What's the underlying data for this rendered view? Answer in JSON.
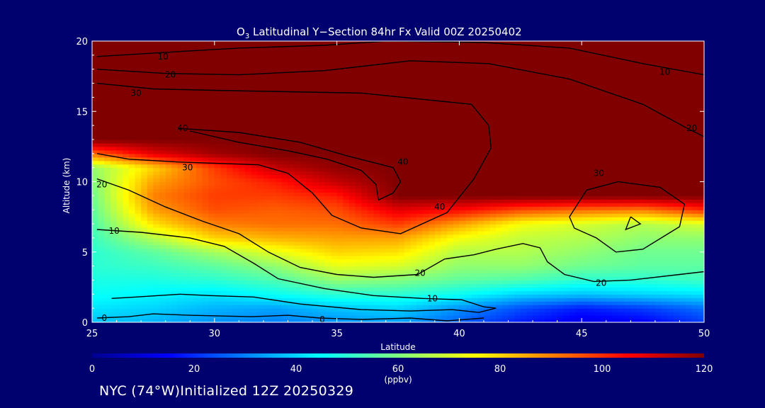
{
  "title_main": "O",
  "title_sub": "3",
  "title_rest": " Latitudinal Y−Section 84hr  Fx Valid 00Z 20250402",
  "footer": "NYC (74°W)Initialized 12Z 20250329",
  "colors": {
    "background": "#00006e",
    "colormap": [
      "#00008f",
      "#0000ff",
      "#0080ff",
      "#00ffff",
      "#80ff80",
      "#ffff00",
      "#ff8000",
      "#ff0000",
      "#800000"
    ]
  },
  "chart_data": {
    "type": "heatmap",
    "title": "O3 Latitudinal Y−Section 84hr  Fx Valid 00Z 20250402",
    "xlabel": "Latitude",
    "ylabel": "Altitude (km)",
    "xlim": [
      25,
      50
    ],
    "ylim": [
      0,
      20
    ],
    "x_ticks": [
      25,
      30,
      35,
      40,
      45,
      50
    ],
    "y_ticks": [
      0,
      5,
      10,
      15,
      20
    ],
    "colorbar": {
      "label": "(ppbv)",
      "range": [
        0,
        120
      ],
      "ticks": [
        0,
        20,
        40,
        60,
        80,
        100,
        120
      ]
    },
    "contour_levels": [
      0,
      10,
      20,
      30,
      40
    ],
    "contour_labels": [
      {
        "text": "10",
        "lat": 27.9,
        "alt": 18.9
      },
      {
        "text": "20",
        "lat": 28.2,
        "alt": 17.6
      },
      {
        "text": "30",
        "lat": 26.8,
        "alt": 16.3
      },
      {
        "text": "40",
        "lat": 28.7,
        "alt": 13.8
      },
      {
        "text": "10",
        "lat": 48.4,
        "alt": 17.8
      },
      {
        "text": "20",
        "lat": 49.5,
        "alt": 13.8
      },
      {
        "text": "30",
        "lat": 28.9,
        "alt": 11.0
      },
      {
        "text": "20",
        "lat": 25.4,
        "alt": 9.8
      },
      {
        "text": "10",
        "lat": 25.9,
        "alt": 6.5
      },
      {
        "text": "0",
        "lat": 25.5,
        "alt": 0.3
      },
      {
        "text": "0",
        "lat": 34.4,
        "alt": 0.2
      },
      {
        "text": "10",
        "lat": 38.9,
        "alt": 1.7
      },
      {
        "text": "20",
        "lat": 38.4,
        "alt": 3.5
      },
      {
        "text": "20",
        "lat": 45.8,
        "alt": 2.8
      },
      {
        "text": "30",
        "lat": 45.7,
        "alt": 10.6
      },
      {
        "text": "40",
        "lat": 39.2,
        "alt": 8.2
      },
      {
        "text": "40",
        "lat": 37.7,
        "alt": 11.4
      }
    ],
    "ozone_field_ppbv": {
      "lat": [
        25,
        27.5,
        30,
        32.5,
        35,
        37.5,
        40,
        42.5,
        45,
        47.5,
        50
      ],
      "alt": [
        0,
        1,
        2,
        3,
        4,
        5,
        6,
        7,
        8,
        9,
        10,
        11,
        12,
        13,
        14,
        15,
        16,
        17,
        18,
        19,
        20
      ],
      "values": [
        [
          38,
          36,
          32,
          30,
          32,
          34,
          26,
          18,
          12,
          14,
          22
        ],
        [
          42,
          40,
          36,
          34,
          38,
          40,
          32,
          24,
          18,
          22,
          28
        ],
        [
          46,
          44,
          42,
          46,
          50,
          50,
          46,
          40,
          38,
          40,
          42
        ],
        [
          48,
          48,
          50,
          54,
          62,
          60,
          56,
          54,
          50,
          50,
          52
        ],
        [
          50,
          52,
          56,
          62,
          72,
          70,
          62,
          62,
          58,
          56,
          56
        ],
        [
          50,
          56,
          64,
          72,
          80,
          78,
          66,
          66,
          62,
          58,
          58
        ],
        [
          52,
          66,
          80,
          84,
          86,
          86,
          74,
          68,
          66,
          62,
          62
        ],
        [
          54,
          78,
          90,
          92,
          92,
          98,
          86,
          74,
          70,
          66,
          70
        ],
        [
          56,
          86,
          96,
          94,
          96,
          108,
          104,
          96,
          92,
          90,
          100
        ],
        [
          58,
          90,
          98,
          98,
          102,
          120,
          120,
          120,
          120,
          120,
          120
        ],
        [
          60,
          86,
          96,
          102,
          112,
          120,
          120,
          120,
          120,
          120,
          120
        ],
        [
          62,
          80,
          98,
          112,
          118,
          120,
          120,
          120,
          120,
          120,
          120
        ],
        [
          92,
          108,
          116,
          120,
          120,
          120,
          120,
          120,
          120,
          120,
          120
        ],
        [
          120,
          120,
          120,
          120,
          120,
          120,
          120,
          120,
          120,
          120,
          120
        ],
        [
          120,
          120,
          120,
          120,
          120,
          120,
          120,
          120,
          120,
          120,
          120
        ],
        [
          120,
          120,
          120,
          120,
          120,
          120,
          120,
          120,
          120,
          120,
          120
        ],
        [
          120,
          120,
          120,
          120,
          120,
          120,
          120,
          120,
          120,
          120,
          120
        ],
        [
          120,
          120,
          120,
          120,
          120,
          120,
          120,
          120,
          120,
          120,
          120
        ],
        [
          120,
          120,
          120,
          120,
          120,
          120,
          120,
          120,
          120,
          120,
          120
        ],
        [
          120,
          120,
          120,
          120,
          120,
          120,
          120,
          120,
          120,
          120,
          120
        ],
        [
          120,
          120,
          120,
          120,
          120,
          120,
          120,
          120,
          120,
          120,
          120
        ]
      ]
    },
    "contour_lines": [
      {
        "level": 40,
        "points": [
          [
            28.5,
            13.8
          ],
          [
            31,
            13.5
          ],
          [
            33.5,
            12.8
          ],
          [
            35.5,
            11.8
          ],
          [
            37.3,
            11.0
          ],
          [
            37.6,
            10.0
          ],
          [
            37.3,
            9.2
          ],
          [
            36.7,
            8.7
          ],
          [
            36.6,
            9.8
          ],
          [
            36,
            10.8
          ],
          [
            34.6,
            11.6
          ],
          [
            33,
            12.2
          ],
          [
            31,
            12.8
          ],
          [
            29,
            13.6
          ]
        ]
      },
      {
        "level": 40,
        "points": [
          [
            47.0,
            7.5
          ],
          [
            47.4,
            7.0
          ],
          [
            46.8,
            6.6
          ],
          [
            47.0,
            7.5
          ]
        ]
      },
      {
        "level": 30,
        "points": [
          [
            25.2,
            17.0
          ],
          [
            27.5,
            16.6
          ],
          [
            30,
            16.5
          ],
          [
            33,
            16.4
          ],
          [
            36,
            16.3
          ],
          [
            40.5,
            15.5
          ],
          [
            41.2,
            14.0
          ],
          [
            41.3,
            12.4
          ],
          [
            40.6,
            10.2
          ],
          [
            39.5,
            7.8
          ],
          [
            37.6,
            6.3
          ],
          [
            36.0,
            6.7
          ],
          [
            34.8,
            7.6
          ],
          [
            34.0,
            9.2
          ],
          [
            33.0,
            10.6
          ],
          [
            31.8,
            11.2
          ],
          [
            30.2,
            11.3
          ],
          [
            28.5,
            11.4
          ],
          [
            26.5,
            11.6
          ],
          [
            25.2,
            12.0
          ]
        ]
      },
      {
        "level": 30,
        "points": [
          [
            44.5,
            7.5
          ],
          [
            45.2,
            9.4
          ],
          [
            46.5,
            10.0
          ],
          [
            48.2,
            9.6
          ],
          [
            49.2,
            8.4
          ],
          [
            49.0,
            6.8
          ],
          [
            47.5,
            5.2
          ],
          [
            46.4,
            5.0
          ],
          [
            45.6,
            6.0
          ],
          [
            44.7,
            6.7
          ],
          [
            44.5,
            7.5
          ]
        ]
      },
      {
        "level": 20,
        "points": [
          [
            25.2,
            18.0
          ],
          [
            28,
            17.7
          ],
          [
            31,
            17.6
          ],
          [
            34.5,
            17.9
          ],
          [
            38,
            18.6
          ],
          [
            41.2,
            18.4
          ],
          [
            44.5,
            17.3
          ],
          [
            47.5,
            15.5
          ],
          [
            49.2,
            13.9
          ],
          [
            50,
            13.2
          ]
        ]
      },
      {
        "level": 20,
        "points": [
          [
            25.2,
            10.2
          ],
          [
            26.5,
            9.4
          ],
          [
            28,
            8.2
          ],
          [
            29.5,
            7.2
          ],
          [
            31,
            6.3
          ],
          [
            32.2,
            5.0
          ],
          [
            33.5,
            3.9
          ],
          [
            35,
            3.4
          ],
          [
            36.5,
            3.2
          ],
          [
            38.3,
            3.4
          ],
          [
            39.4,
            4.5
          ],
          [
            40.6,
            4.8
          ],
          [
            41.5,
            5.2
          ],
          [
            42.6,
            5.6
          ],
          [
            43.3,
            5.3
          ],
          [
            43.6,
            4.3
          ],
          [
            44.3,
            3.4
          ],
          [
            45.5,
            2.9
          ],
          [
            47,
            3.0
          ],
          [
            49,
            3.4
          ],
          [
            50,
            3.6
          ]
        ]
      },
      {
        "level": 10,
        "points": [
          [
            25.2,
            18.9
          ],
          [
            28,
            19.2
          ],
          [
            31,
            19.5
          ],
          [
            34.5,
            19.7
          ],
          [
            37,
            20.0
          ],
          [
            41,
            19.9
          ],
          [
            44.5,
            19.5
          ],
          [
            47.5,
            18.4
          ],
          [
            50,
            17.6
          ]
        ]
      },
      {
        "level": 10,
        "points": [
          [
            25.2,
            6.6
          ],
          [
            27,
            6.4
          ],
          [
            29,
            6.0
          ],
          [
            30.4,
            5.4
          ],
          [
            31.6,
            4.2
          ],
          [
            32.6,
            3.1
          ],
          [
            34.5,
            2.4
          ],
          [
            36.5,
            1.9
          ],
          [
            38.5,
            1.7
          ],
          [
            40.1,
            1.6
          ],
          [
            41,
            1.1
          ],
          [
            41.5,
            1.0
          ],
          [
            40.8,
            0.7
          ],
          [
            39.7,
            0.9
          ],
          [
            38,
            0.8
          ],
          [
            36,
            0.9
          ],
          [
            33.5,
            1.3
          ],
          [
            31.6,
            1.8
          ],
          [
            29.8,
            1.9
          ],
          [
            28.6,
            2.0
          ],
          [
            26.8,
            1.8
          ],
          [
            25.8,
            1.7
          ]
        ]
      },
      {
        "level": 0,
        "points": [
          [
            25.2,
            0.3
          ],
          [
            26.5,
            0.4
          ],
          [
            27.5,
            0.6
          ],
          [
            29,
            0.5
          ],
          [
            31.5,
            0.4
          ],
          [
            33,
            0.5
          ],
          [
            34.3,
            0.3
          ],
          [
            36,
            0.2
          ],
          [
            38,
            0.3
          ],
          [
            39.5,
            0.1
          ],
          [
            41,
            0.3
          ]
        ]
      }
    ]
  }
}
